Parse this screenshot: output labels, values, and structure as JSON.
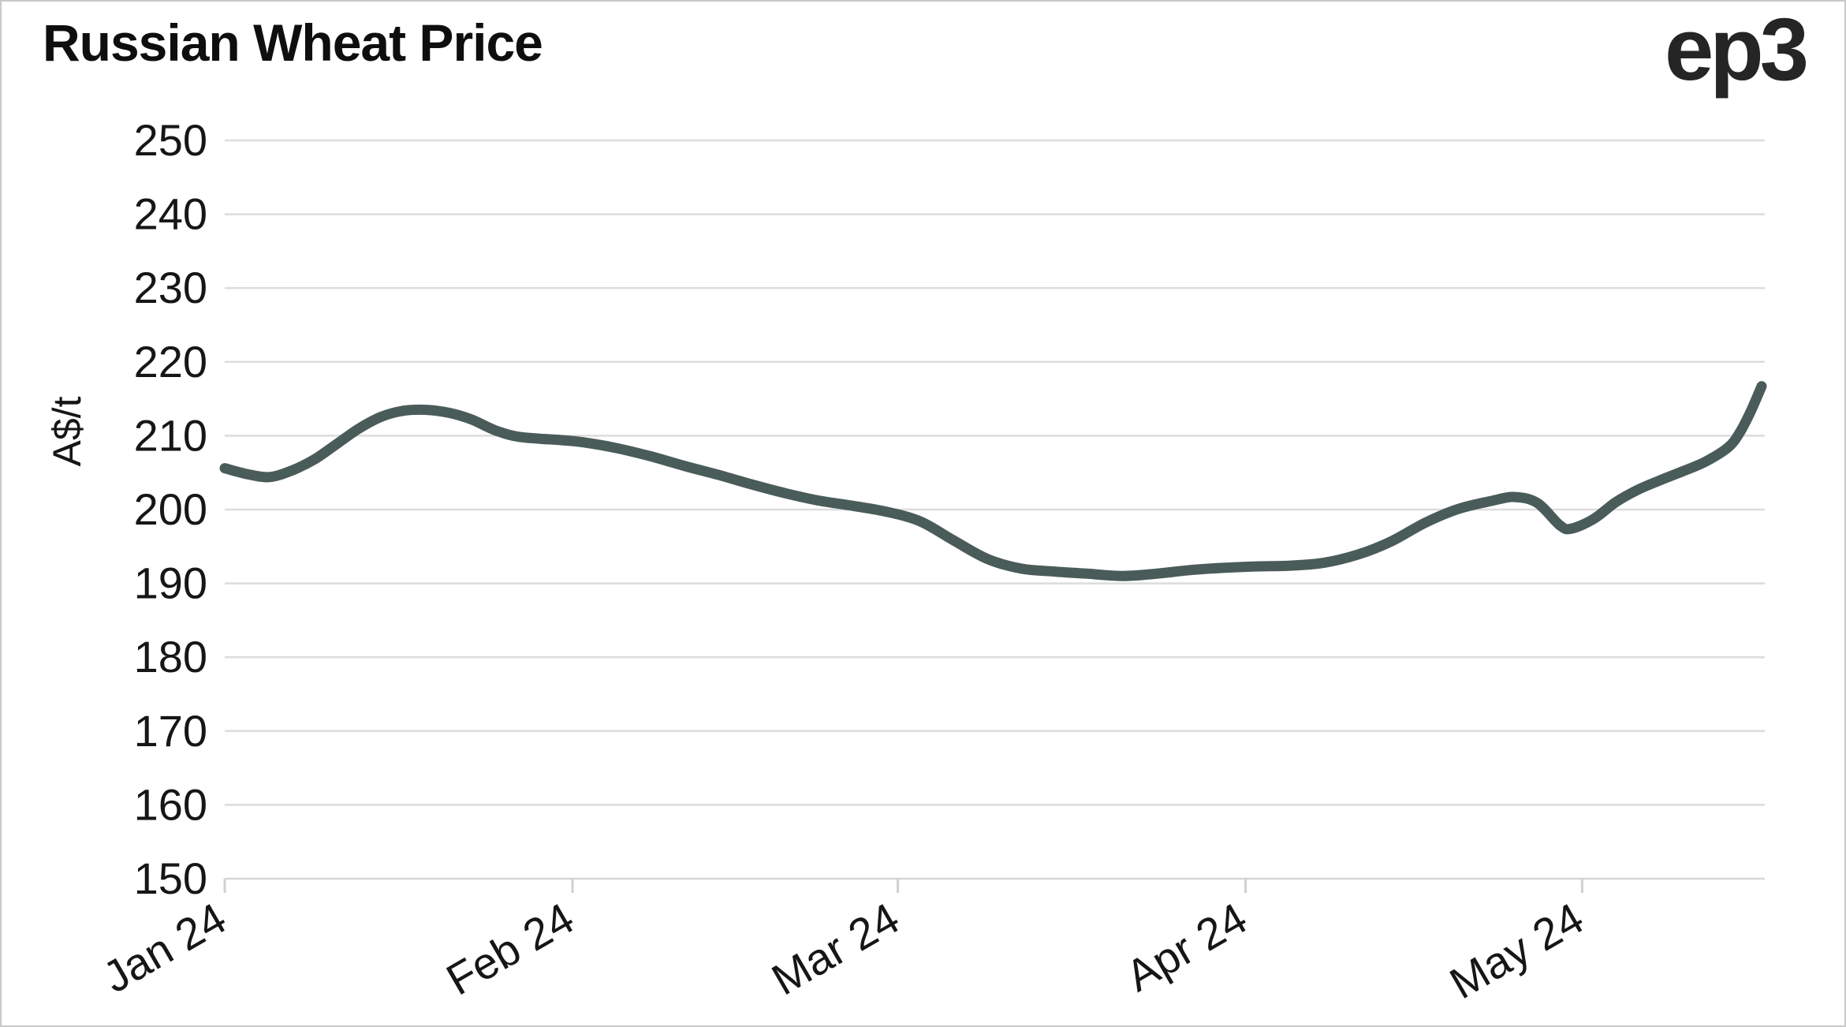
{
  "header": {
    "title": "Russian Wheat Price",
    "logo": "ep3"
  },
  "chart_data": {
    "type": "line",
    "title": "Russian Wheat Price",
    "xlabel": "",
    "ylabel": "A$/t",
    "ylim": [
      150,
      250
    ],
    "y_ticks": [
      250,
      240,
      230,
      220,
      210,
      200,
      190,
      180,
      170,
      160,
      150
    ],
    "x_ticks": [
      {
        "label": "Jan 24",
        "date": "2024-01-01"
      },
      {
        "label": "Feb 24",
        "date": "2024-02-01"
      },
      {
        "label": "Mar 24",
        "date": "2024-03-01"
      },
      {
        "label": "Apr 24",
        "date": "2024-04-01"
      },
      {
        "label": "May 24",
        "date": "2024-05-01"
      }
    ],
    "grid": "horizontal-only",
    "legend": "none",
    "line_color": "#4a5c59",
    "line_width": 13,
    "series": [
      {
        "name": "Russian wheat price (A$/t)",
        "points": [
          [
            "2024-01-01",
            205.6
          ],
          [
            "2024-01-03",
            204.8
          ],
          [
            "2024-01-05",
            204.4
          ],
          [
            "2024-01-07",
            205.3
          ],
          [
            "2024-01-09",
            206.8
          ],
          [
            "2024-01-11",
            208.9
          ],
          [
            "2024-01-13",
            211.0
          ],
          [
            "2024-01-15",
            212.6
          ],
          [
            "2024-01-17",
            213.4
          ],
          [
            "2024-01-19",
            213.5
          ],
          [
            "2024-01-21",
            213.1
          ],
          [
            "2024-01-23",
            212.2
          ],
          [
            "2024-01-25",
            210.8
          ],
          [
            "2024-01-27",
            209.9
          ],
          [
            "2024-01-29",
            209.6
          ],
          [
            "2024-01-31",
            209.4
          ],
          [
            "2024-02-02",
            209.1
          ],
          [
            "2024-02-05",
            208.3
          ],
          [
            "2024-02-08",
            207.2
          ],
          [
            "2024-02-11",
            205.9
          ],
          [
            "2024-02-14",
            204.7
          ],
          [
            "2024-02-17",
            203.4
          ],
          [
            "2024-02-20",
            202.2
          ],
          [
            "2024-02-23",
            201.2
          ],
          [
            "2024-02-26",
            200.5
          ],
          [
            "2024-02-29",
            199.7
          ],
          [
            "2024-03-03",
            198.4
          ],
          [
            "2024-03-06",
            195.8
          ],
          [
            "2024-03-09",
            193.3
          ],
          [
            "2024-03-12",
            192.0
          ],
          [
            "2024-03-15",
            191.6
          ],
          [
            "2024-03-18",
            191.3
          ],
          [
            "2024-03-21",
            191.0
          ],
          [
            "2024-03-24",
            191.3
          ],
          [
            "2024-03-27",
            191.8
          ],
          [
            "2024-03-30",
            192.1
          ],
          [
            "2024-04-02",
            192.3
          ],
          [
            "2024-04-05",
            192.4
          ],
          [
            "2024-04-08",
            192.8
          ],
          [
            "2024-04-11",
            193.9
          ],
          [
            "2024-04-14",
            195.7
          ],
          [
            "2024-04-17",
            198.2
          ],
          [
            "2024-04-20",
            200.1
          ],
          [
            "2024-04-23",
            201.2
          ],
          [
            "2024-04-25",
            201.7
          ],
          [
            "2024-04-27",
            200.9
          ],
          [
            "2024-04-29",
            197.9
          ],
          [
            "2024-04-30",
            197.4
          ],
          [
            "2024-05-02",
            198.7
          ],
          [
            "2024-05-04",
            201.0
          ],
          [
            "2024-05-06",
            202.7
          ],
          [
            "2024-05-08",
            204.0
          ],
          [
            "2024-05-10",
            205.2
          ],
          [
            "2024-05-12",
            206.5
          ],
          [
            "2024-05-14",
            208.4
          ],
          [
            "2024-05-15",
            210.3
          ],
          [
            "2024-05-16",
            213.2
          ],
          [
            "2024-05-17",
            216.7
          ]
        ]
      }
    ]
  },
  "colors": {
    "background": "#ffffff",
    "border": "#c9c9c9",
    "gridline": "#dcdcdc",
    "text": "#161616",
    "title": "#0e0e0e",
    "line": "#4a5c59"
  }
}
